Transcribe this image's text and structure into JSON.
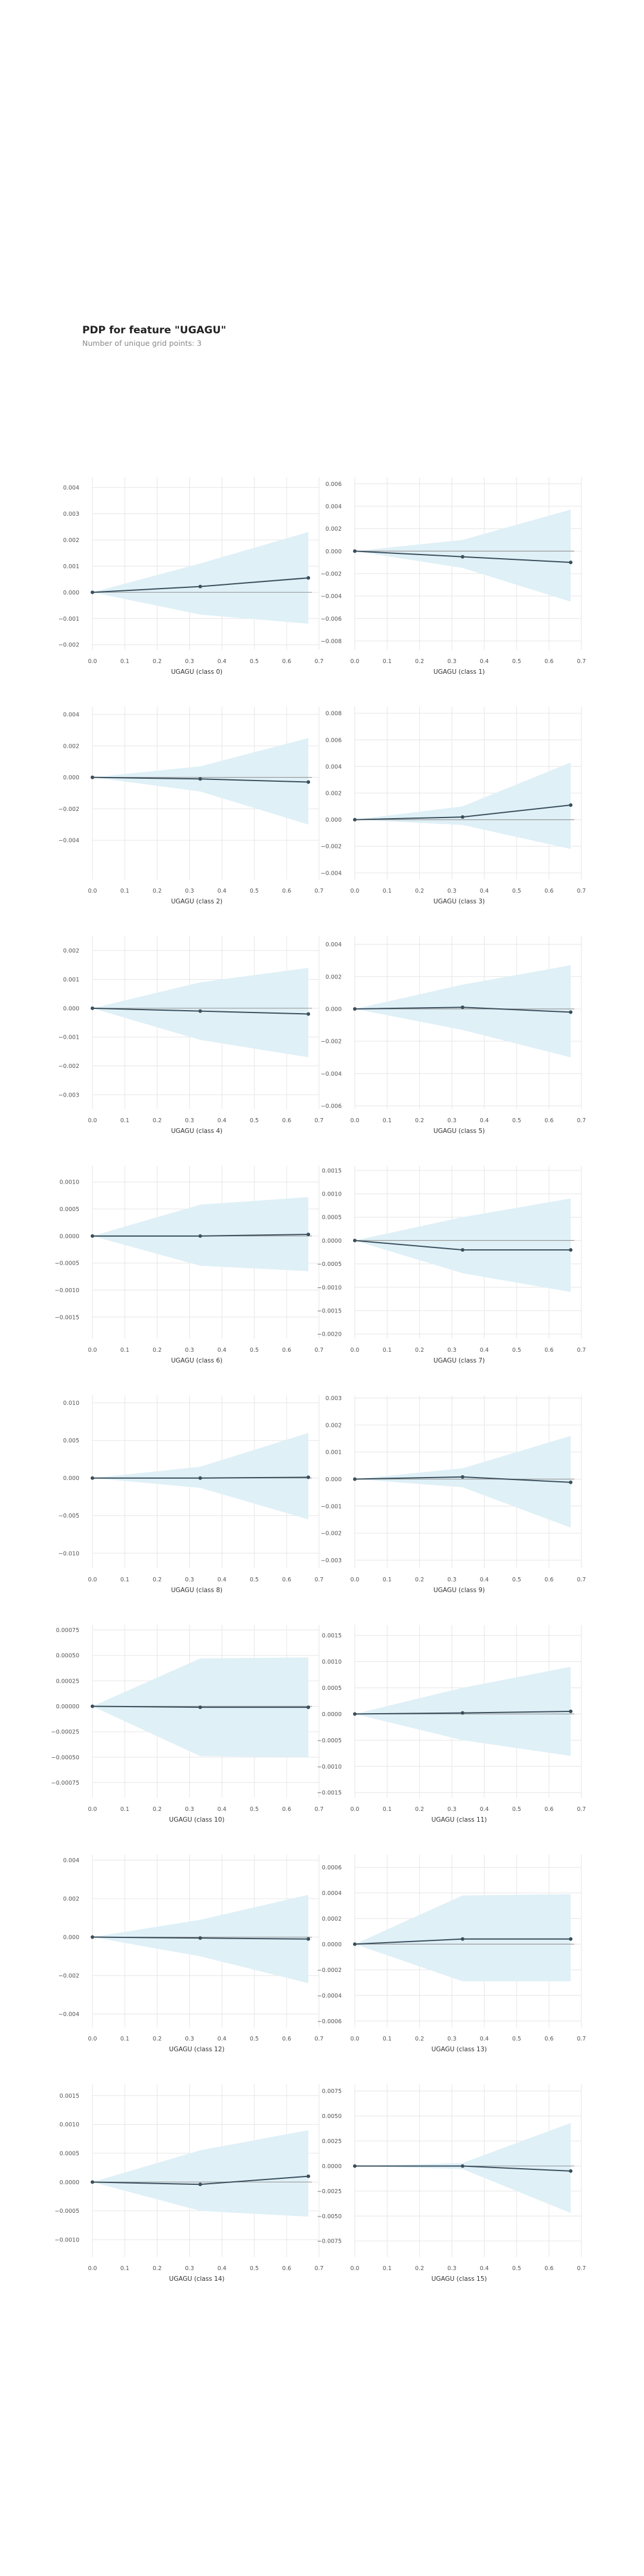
{
  "title": "PDP for feature \"UGAGU\"",
  "subtitle": "Number of unique grid points: 3",
  "colors": {
    "band": "#dff0f7",
    "line": "#3a4f5c",
    "grid": "#e6e6e6",
    "zero": "#9a9a9a"
  },
  "chart_data": [
    {
      "type": "line",
      "xlabel": "UGAGU (class 0)",
      "xlim": [
        0,
        0.7
      ],
      "ylim": [
        -0.0022,
        0.0044
      ],
      "xticks": [
        "0.0",
        "0.1",
        "0.2",
        "0.3",
        "0.4",
        "0.5",
        "0.6",
        "0.7"
      ],
      "xtick_values": [
        0,
        0.1,
        0.2,
        0.3,
        0.4,
        0.5,
        0.6,
        0.7
      ],
      "yticks": [
        "0.004",
        "0.003",
        "0.002",
        "0.001",
        "0.000",
        "−0.001",
        "−0.002"
      ],
      "ytick_values": [
        0.004,
        0.003,
        0.002,
        0.001,
        0,
        -0.001,
        -0.002
      ],
      "x": [
        0,
        0.333,
        0.667
      ],
      "y": [
        0,
        0.00022,
        0.00055
      ],
      "upper": [
        0,
        0.0011,
        0.0023
      ],
      "lower": [
        0,
        -0.00085,
        -0.0012
      ]
    },
    {
      "type": "line",
      "xlabel": "UGAGU (class 1)",
      "xlim": [
        0,
        0.7
      ],
      "ylim": [
        -0.0088,
        0.0066
      ],
      "xticks": [
        "0.0",
        "0.1",
        "0.2",
        "0.3",
        "0.4",
        "0.5",
        "0.6",
        "0.7"
      ],
      "xtick_values": [
        0,
        0.1,
        0.2,
        0.3,
        0.4,
        0.5,
        0.6,
        0.7
      ],
      "yticks": [
        "0.006",
        "0.004",
        "0.002",
        "0.000",
        "−0.002",
        "−0.004",
        "−0.006",
        "−0.008"
      ],
      "ytick_values": [
        0.006,
        0.004,
        0.002,
        0,
        -0.002,
        -0.004,
        -0.006,
        -0.008
      ],
      "x": [
        0,
        0.333,
        0.667
      ],
      "y": [
        0,
        -0.0005,
        -0.001
      ],
      "upper": [
        0,
        0.001,
        0.0037
      ],
      "lower": [
        0,
        -0.0015,
        -0.0045
      ]
    },
    {
      "type": "line",
      "xlabel": "UGAGU (class 2)",
      "xlim": [
        0,
        0.7
      ],
      "ylim": [
        -0.0065,
        0.0045
      ],
      "xticks": [
        "0.0",
        "0.1",
        "0.2",
        "0.3",
        "0.4",
        "0.5",
        "0.6",
        "0.7"
      ],
      "xtick_values": [
        0,
        0.1,
        0.2,
        0.3,
        0.4,
        0.5,
        0.6,
        0.7
      ],
      "yticks": [
        "0.004",
        "0.002",
        "0.000",
        "−0.002",
        "−0.004"
      ],
      "ytick_values": [
        0.004,
        0.002,
        0,
        -0.002,
        -0.004
      ],
      "x": [
        0,
        0.333,
        0.667
      ],
      "y": [
        0,
        -0.0001,
        -0.0003
      ],
      "upper": [
        0,
        0.0007,
        0.0025
      ],
      "lower": [
        0,
        -0.0009,
        -0.003
      ]
    },
    {
      "type": "line",
      "xlabel": "UGAGU (class 3)",
      "xlim": [
        0,
        0.7
      ],
      "ylim": [
        -0.0045,
        0.0085
      ],
      "xticks": [
        "0.0",
        "0.1",
        "0.2",
        "0.3",
        "0.4",
        "0.5",
        "0.6",
        "0.7"
      ],
      "xtick_values": [
        0,
        0.1,
        0.2,
        0.3,
        0.4,
        0.5,
        0.6,
        0.7
      ],
      "yticks": [
        "0.008",
        "0.006",
        "0.004",
        "0.002",
        "0.000",
        "−0.002",
        "−0.004"
      ],
      "ytick_values": [
        0.008,
        0.006,
        0.004,
        0.002,
        0,
        -0.002,
        -0.004
      ],
      "x": [
        0,
        0.333,
        0.667
      ],
      "y": [
        0,
        0.0002,
        0.0011
      ],
      "upper": [
        0,
        0.001,
        0.0043
      ],
      "lower": [
        0,
        -0.0004,
        -0.0022
      ]
    },
    {
      "type": "line",
      "xlabel": "UGAGU (class 4)",
      "xlim": [
        0,
        0.7
      ],
      "ylim": [
        -0.0035,
        0.0025
      ],
      "xticks": [
        "0.0",
        "0.1",
        "0.2",
        "0.3",
        "0.4",
        "0.5",
        "0.6",
        "0.7"
      ],
      "xtick_values": [
        0,
        0.1,
        0.2,
        0.3,
        0.4,
        0.5,
        0.6,
        0.7
      ],
      "yticks": [
        "0.002",
        "0.001",
        "0.000",
        "−0.001",
        "−0.002",
        "−0.003"
      ],
      "ytick_values": [
        0.002,
        0.001,
        0,
        -0.001,
        -0.002,
        -0.003
      ],
      "x": [
        0,
        0.333,
        0.667
      ],
      "y": [
        0,
        -0.0001,
        -0.0002
      ],
      "upper": [
        0,
        0.0009,
        0.0014
      ],
      "lower": [
        0,
        -0.0011,
        -0.0017
      ]
    },
    {
      "type": "line",
      "xlabel": "UGAGU (class 5)",
      "xlim": [
        0,
        0.7
      ],
      "ylim": [
        -0.0062,
        0.0045
      ],
      "xticks": [
        "0.0",
        "0.1",
        "0.2",
        "0.3",
        "0.4",
        "0.5",
        "0.6",
        "0.7"
      ],
      "xtick_values": [
        0,
        0.1,
        0.2,
        0.3,
        0.4,
        0.5,
        0.6,
        0.7
      ],
      "yticks": [
        "0.004",
        "0.002",
        "0.000",
        "−0.002",
        "−0.004",
        "−0.006"
      ],
      "ytick_values": [
        0.004,
        0.002,
        0,
        -0.002,
        -0.004,
        -0.006
      ],
      "x": [
        0,
        0.333,
        0.667
      ],
      "y": [
        0,
        0.0001,
        -0.0002
      ],
      "upper": [
        0,
        0.0015,
        0.0027
      ],
      "lower": [
        0,
        -0.0013,
        -0.003
      ]
    },
    {
      "type": "line",
      "xlabel": "UGAGU (class 6)",
      "xlim": [
        0,
        0.7
      ],
      "ylim": [
        -0.0019,
        0.0013
      ],
      "xticks": [
        "0.0",
        "0.1",
        "0.2",
        "0.3",
        "0.4",
        "0.5",
        "0.6",
        "0.7"
      ],
      "xtick_values": [
        0,
        0.1,
        0.2,
        0.3,
        0.4,
        0.5,
        0.6,
        0.7
      ],
      "yticks": [
        "0.0010",
        "0.0005",
        "0.0000",
        "−0.0005",
        "−0.0010",
        "−0.0015"
      ],
      "ytick_values": [
        0.001,
        0.0005,
        0,
        -0.0005,
        -0.001,
        -0.0015
      ],
      "x": [
        0,
        0.333,
        0.667
      ],
      "y": [
        0,
        0,
        3e-05
      ],
      "upper": [
        0,
        0.00058,
        0.00072
      ],
      "lower": [
        0,
        -0.00055,
        -0.00065
      ]
    },
    {
      "type": "line",
      "xlabel": "UGAGU (class 7)",
      "xlim": [
        0,
        0.7
      ],
      "ylim": [
        -0.0021,
        0.0016
      ],
      "xticks": [
        "0.0",
        "0.1",
        "0.2",
        "0.3",
        "0.4",
        "0.5",
        "0.6",
        "0.7"
      ],
      "xtick_values": [
        0,
        0.1,
        0.2,
        0.3,
        0.4,
        0.5,
        0.6,
        0.7
      ],
      "yticks": [
        "0.0015",
        "0.0010",
        "0.0005",
        "0.0000",
        "−0.0005",
        "−0.0010",
        "−0.0015",
        "−0.0020"
      ],
      "ytick_values": [
        0.0015,
        0.001,
        0.0005,
        0,
        -0.0005,
        -0.001,
        -0.0015,
        -0.002
      ],
      "x": [
        0,
        0.333,
        0.667
      ],
      "y": [
        0,
        -0.0002,
        -0.0002
      ],
      "upper": [
        0,
        0.0005,
        0.0009
      ],
      "lower": [
        0,
        -0.0007,
        -0.0011
      ]
    },
    {
      "type": "line",
      "xlabel": "UGAGU (class 8)",
      "xlim": [
        0,
        0.7
      ],
      "ylim": [
        -0.012,
        0.011
      ],
      "xticks": [
        "0.0",
        "0.1",
        "0.2",
        "0.3",
        "0.4",
        "0.5",
        "0.6",
        "0.7"
      ],
      "xtick_values": [
        0,
        0.1,
        0.2,
        0.3,
        0.4,
        0.5,
        0.6,
        0.7
      ],
      "yticks": [
        "0.010",
        "0.005",
        "0.000",
        "−0.005",
        "−0.010"
      ],
      "ytick_values": [
        0.01,
        0.005,
        0,
        -0.005,
        -0.01
      ],
      "x": [
        0,
        0.333,
        0.667
      ],
      "y": [
        0,
        0,
        0.0001
      ],
      "upper": [
        0,
        0.0015,
        0.006
      ],
      "lower": [
        0,
        -0.0013,
        -0.0055
      ]
    },
    {
      "type": "line",
      "xlabel": "UGAGU (class 9)",
      "xlim": [
        0,
        0.7
      ],
      "ylim": [
        -0.0033,
        0.0031
      ],
      "xticks": [
        "0.0",
        "0.1",
        "0.2",
        "0.3",
        "0.4",
        "0.5",
        "0.6",
        "0.7"
      ],
      "xtick_values": [
        0,
        0.1,
        0.2,
        0.3,
        0.4,
        0.5,
        0.6,
        0.7
      ],
      "yticks": [
        "0.003",
        "0.002",
        "0.001",
        "0.000",
        "−0.001",
        "−0.002",
        "−0.003"
      ],
      "ytick_values": [
        0.003,
        0.002,
        0.001,
        0,
        -0.001,
        -0.002,
        -0.003
      ],
      "x": [
        0,
        0.333,
        0.667
      ],
      "y": [
        0,
        8e-05,
        -0.00012
      ],
      "upper": [
        0,
        0.0004,
        0.0016
      ],
      "lower": [
        0,
        -0.0003,
        -0.0018
      ]
    },
    {
      "type": "line",
      "xlabel": "UGAGU (class 10)",
      "xlim": [
        0,
        0.7
      ],
      "ylim": [
        -0.0009,
        0.0008
      ],
      "xticks": [
        "0.0",
        "0.1",
        "0.2",
        "0.3",
        "0.4",
        "0.5",
        "0.6",
        "0.7"
      ],
      "xtick_values": [
        0,
        0.1,
        0.2,
        0.3,
        0.4,
        0.5,
        0.6,
        0.7
      ],
      "yticks": [
        "0.00075",
        "0.00050",
        "0.00025",
        "0.00000",
        "−0.00025",
        "−0.00050",
        "−0.00075"
      ],
      "ytick_values": [
        0.00075,
        0.0005,
        0.00025,
        0,
        -0.00025,
        -0.0005,
        -0.00075
      ],
      "x": [
        0,
        0.333,
        0.667
      ],
      "y": [
        0,
        -1e-05,
        -1e-05
      ],
      "upper": [
        0,
        0.00047,
        0.00048
      ],
      "lower": [
        0,
        -0.00049,
        -0.0005
      ]
    },
    {
      "type": "line",
      "xlabel": "UGAGU (class 11)",
      "xlim": [
        0,
        0.7
      ],
      "ylim": [
        -0.0016,
        0.0017
      ],
      "xticks": [
        "0.0",
        "0.1",
        "0.2",
        "0.3",
        "0.4",
        "0.5",
        "0.6",
        "0.7"
      ],
      "xtick_values": [
        0,
        0.1,
        0.2,
        0.3,
        0.4,
        0.5,
        0.6,
        0.7
      ],
      "yticks": [
        "0.0015",
        "0.0010",
        "0.0005",
        "0.0000",
        "−0.0005",
        "−0.0010",
        "−0.0015"
      ],
      "ytick_values": [
        0.0015,
        0.001,
        0.0005,
        0,
        -0.0005,
        -0.001,
        -0.0015
      ],
      "x": [
        0,
        0.333,
        0.667
      ],
      "y": [
        0,
        2e-05,
        5e-05
      ],
      "upper": [
        0,
        0.0005,
        0.0009
      ],
      "lower": [
        0,
        -0.0005,
        -0.0008
      ]
    },
    {
      "type": "line",
      "xlabel": "UGAGU (class 12)",
      "xlim": [
        0,
        0.7
      ],
      "ylim": [
        -0.0047,
        0.0043
      ],
      "xticks": [
        "0.0",
        "0.1",
        "0.2",
        "0.3",
        "0.4",
        "0.5",
        "0.6",
        "0.7"
      ],
      "xtick_values": [
        0,
        0.1,
        0.2,
        0.3,
        0.4,
        0.5,
        0.6,
        0.7
      ],
      "yticks": [
        "0.004",
        "0.002",
        "0.000",
        "−0.002",
        "−0.004"
      ],
      "ytick_values": [
        0.004,
        0.002,
        0,
        -0.002,
        -0.004
      ],
      "x": [
        0,
        0.333,
        0.667
      ],
      "y": [
        0,
        -5e-05,
        -0.0001
      ],
      "upper": [
        0,
        0.0009,
        0.0022
      ],
      "lower": [
        0,
        -0.001,
        -0.0024
      ]
    },
    {
      "type": "line",
      "xlabel": "UGAGU (class 13)",
      "xlim": [
        0,
        0.7
      ],
      "ylim": [
        -0.00065,
        0.0007
      ],
      "xticks": [
        "0.0",
        "0.1",
        "0.2",
        "0.3",
        "0.4",
        "0.5",
        "0.6",
        "0.7"
      ],
      "xtick_values": [
        0,
        0.1,
        0.2,
        0.3,
        0.4,
        0.5,
        0.6,
        0.7
      ],
      "yticks": [
        "0.0006",
        "0.0004",
        "0.0002",
        "0.0000",
        "−0.0002",
        "−0.0004",
        "−0.0006"
      ],
      "ytick_values": [
        0.0006,
        0.0004,
        0.0002,
        0,
        -0.0002,
        -0.0004,
        -0.0006
      ],
      "x": [
        0,
        0.333,
        0.667
      ],
      "y": [
        0,
        4e-05,
        4e-05
      ],
      "upper": [
        0,
        0.00038,
        0.00039
      ],
      "lower": [
        0,
        -0.00029,
        -0.00029
      ]
    },
    {
      "type": "line",
      "xlabel": "UGAGU (class 14)",
      "xlim": [
        0,
        0.7
      ],
      "ylim": [
        -0.0013,
        0.0017
      ],
      "xticks": [
        "0.0",
        "0.1",
        "0.2",
        "0.3",
        "0.4",
        "0.5",
        "0.6",
        "0.7"
      ],
      "xtick_values": [
        0,
        0.1,
        0.2,
        0.3,
        0.4,
        0.5,
        0.6,
        0.7
      ],
      "yticks": [
        "0.0015",
        "0.0010",
        "0.0005",
        "0.0000",
        "−0.0005",
        "−0.0010"
      ],
      "ytick_values": [
        0.0015,
        0.001,
        0.0005,
        0,
        -0.0005,
        -0.001
      ],
      "x": [
        0,
        0.333,
        0.667
      ],
      "y": [
        0,
        -4e-05,
        0.0001
      ],
      "upper": [
        0,
        0.00055,
        0.0009
      ],
      "lower": [
        0,
        -0.0005,
        -0.0006
      ]
    },
    {
      "type": "line",
      "xlabel": "UGAGU (class 15)",
      "xlim": [
        0,
        0.7
      ],
      "ylim": [
        -0.0091,
        0.0082
      ],
      "xticks": [
        "0.0",
        "0.1",
        "0.2",
        "0.3",
        "0.4",
        "0.5",
        "0.6",
        "0.7"
      ],
      "xtick_values": [
        0,
        0.1,
        0.2,
        0.3,
        0.4,
        0.5,
        0.6,
        0.7
      ],
      "yticks": [
        "0.0075",
        "0.0050",
        "0.0025",
        "0.0000",
        "−0.0025",
        "−0.0050",
        "−0.0075"
      ],
      "ytick_values": [
        0.0075,
        0.005,
        0.0025,
        0,
        -0.0025,
        -0.005,
        -0.0075
      ],
      "x": [
        0,
        0.333,
        0.667
      ],
      "y": [
        0,
        0,
        -0.0005
      ],
      "upper": [
        0,
        0.0003,
        0.0043
      ],
      "lower": [
        0,
        -0.0003,
        -0.0047
      ]
    }
  ]
}
